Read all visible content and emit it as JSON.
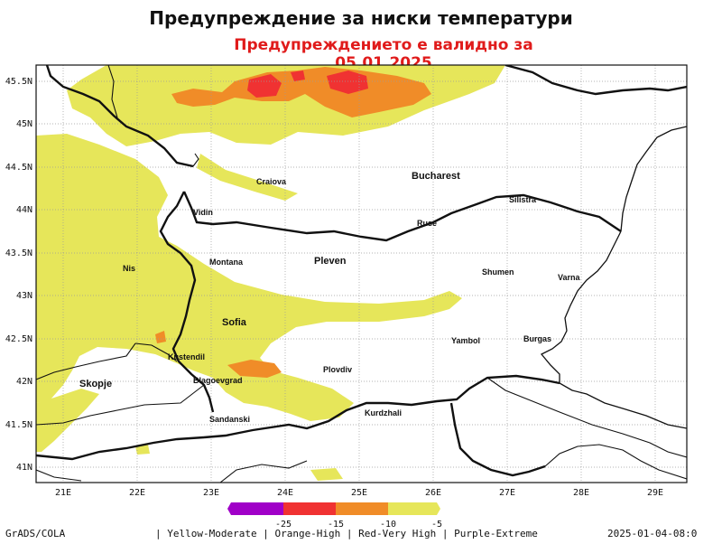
{
  "title": "Предупреждение за ниски температури",
  "subtitle": "Предупреждението е валидно за 05.01.2025",
  "map": {
    "lat_ticks": [
      "45.5N",
      "45N",
      "44.5N",
      "44N",
      "43.5N",
      "43N",
      "42.5N",
      "42N",
      "41.5N",
      "41N"
    ],
    "lon_ticks": [
      "21E",
      "22E",
      "23E",
      "24E",
      "25E",
      "26E",
      "27E",
      "28E",
      "29E"
    ],
    "cities": [
      {
        "name": "Craiova",
        "size": "small"
      },
      {
        "name": "Bucharest",
        "size": "big"
      },
      {
        "name": "Vidin",
        "size": "small"
      },
      {
        "name": "Ruse",
        "size": "small"
      },
      {
        "name": "Silistra",
        "size": "small"
      },
      {
        "name": "Nis",
        "size": "small"
      },
      {
        "name": "Montana",
        "size": "small"
      },
      {
        "name": "Pleven",
        "size": "big"
      },
      {
        "name": "Shumen",
        "size": "small"
      },
      {
        "name": "Varna",
        "size": "small"
      },
      {
        "name": "Sofia",
        "size": "big"
      },
      {
        "name": "Yambol",
        "size": "small"
      },
      {
        "name": "Burgas",
        "size": "small"
      },
      {
        "name": "Kustendil",
        "size": "small"
      },
      {
        "name": "Skopje",
        "size": "big"
      },
      {
        "name": "Blagoevgrad",
        "size": "small"
      },
      {
        "name": "Plovdiv",
        "size": "small"
      },
      {
        "name": "Kurdzhali",
        "size": "small"
      },
      {
        "name": "Sandanski",
        "size": "small"
      }
    ]
  },
  "legend": {
    "colors": [
      "#a000c8",
      "#f03232",
      "#f08c28",
      "#e6e65a"
    ],
    "labels": [
      "-25",
      "-15",
      "-10",
      "-5"
    ],
    "description": "| Yellow-Moderate | Orange-High | Red-Very High | Purple-Extreme"
  },
  "footer": {
    "source": "GrADS/COLA",
    "timestamp": "2025-01-04-08:0"
  },
  "colors": {
    "yellow": "#e6e65a",
    "orange": "#f08c28",
    "red": "#f03232",
    "purple": "#a000c8",
    "subtitle": "#e01b1b"
  }
}
